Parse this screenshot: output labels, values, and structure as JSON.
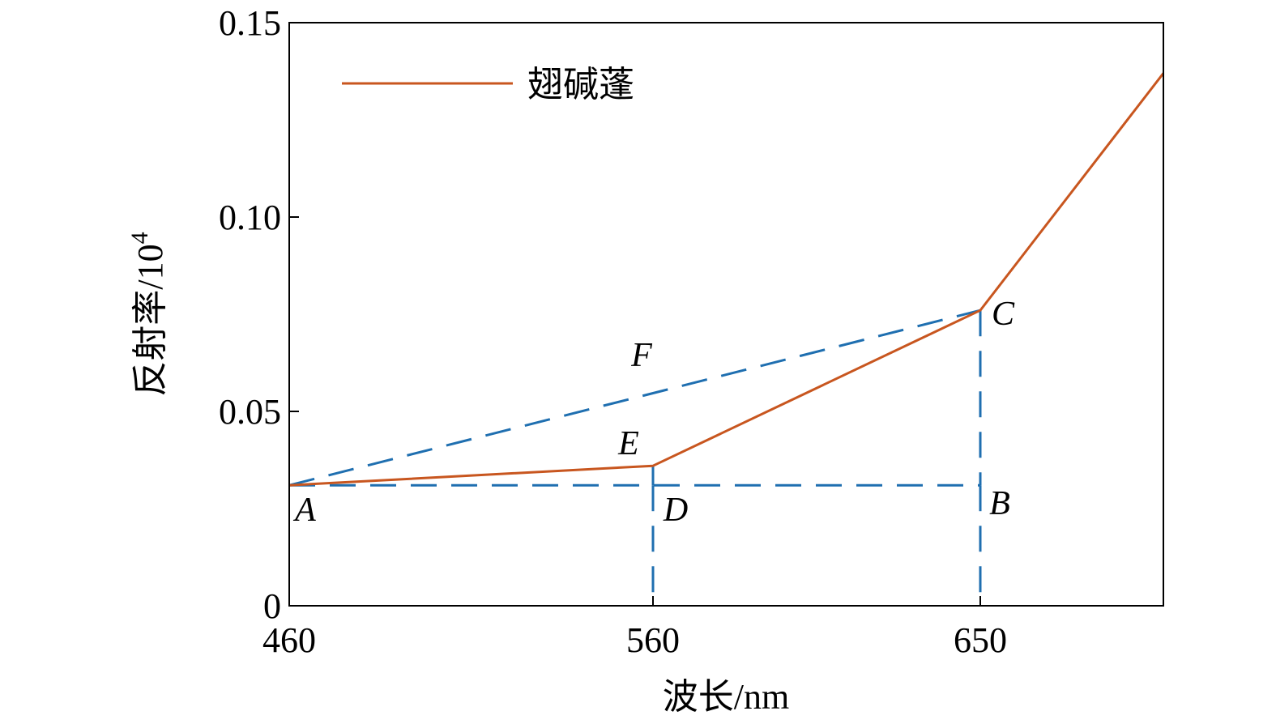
{
  "chart_data": {
    "type": "line",
    "xlabel": "波长/nm",
    "ylabel": "反射率/10",
    "ylabel_superscript": "4",
    "x_ticks": [
      "460",
      "560",
      "650"
    ],
    "y_ticks": [
      "0",
      "0.05",
      "0.10",
      "0.15"
    ],
    "xlim": [
      460,
      710
    ],
    "ylim": [
      0,
      0.15
    ],
    "grid": false,
    "legend_position": "top-left",
    "series": [
      {
        "name": "翅碱蓬",
        "color": "#c8561f",
        "x": [
          460,
          560,
          650,
          710
        ],
        "y": [
          0.031,
          0.036,
          0.076,
          0.137
        ]
      }
    ],
    "reference_lines": {
      "color": "#1f6fb0",
      "style": "dashed",
      "segments": [
        {
          "from": "A",
          "to": "B"
        },
        {
          "from": "A",
          "to": "C"
        },
        {
          "from": "C",
          "to": "B"
        },
        {
          "from": "E",
          "to": "D"
        }
      ]
    },
    "points": [
      {
        "label": "A",
        "x": 460,
        "y": 0.031
      },
      {
        "label": "B",
        "x": 650,
        "y": 0.031
      },
      {
        "label": "C",
        "x": 650,
        "y": 0.076
      },
      {
        "label": "D",
        "x": 560,
        "y": 0.031
      },
      {
        "label": "E",
        "x": 560,
        "y": 0.036
      },
      {
        "label": "F",
        "x": 560,
        "y": 0.055
      }
    ]
  }
}
